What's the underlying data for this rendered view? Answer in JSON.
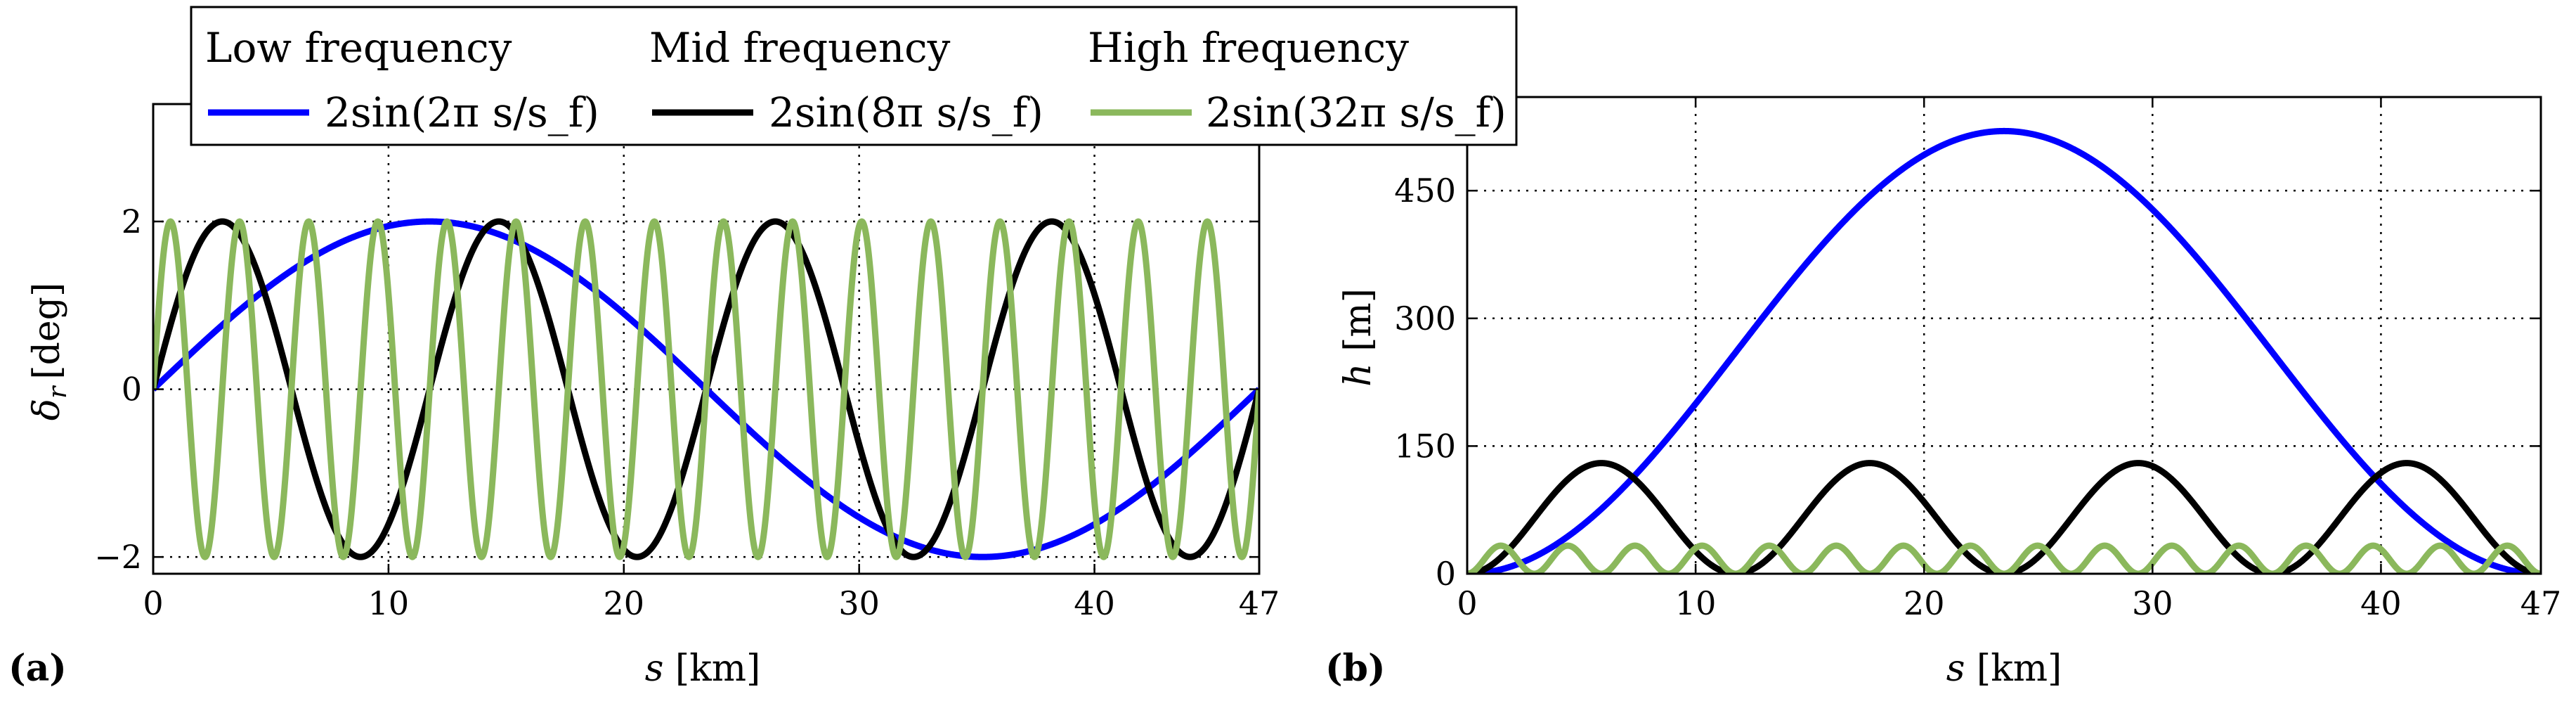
{
  "legend": {
    "entries": [
      {
        "name": "Low frequency",
        "formula": "2sin(2π s/s_f)",
        "color": "#0000ff"
      },
      {
        "name": "Mid frequency",
        "formula": "2sin(8π s/s_f)",
        "color": "#000000"
      },
      {
        "name": "High frequency",
        "formula": "2sin(32π s/s_f)",
        "color": "#8bb85c"
      }
    ]
  },
  "chart_data": [
    {
      "panel": "(a)",
      "type": "line",
      "xlabel_var": "s",
      "xlabel_unit": "[km]",
      "ylabel_var": "δ",
      "ylabel_sub": "r",
      "ylabel_unit": "[deg]",
      "xlim": [
        0,
        47
      ],
      "ylim": [
        -2.2,
        3.4
      ],
      "xticks": [
        0,
        10,
        20,
        30,
        40,
        47
      ],
      "xtick_labels": [
        "0",
        "10",
        "20",
        "30",
        "40",
        "47"
      ],
      "yticks": [
        -2,
        0,
        2
      ],
      "ytick_labels": [
        "−2",
        "0",
        "2"
      ],
      "grid": true,
      "s_f_km": 47,
      "amplitude_deg": 2,
      "series": [
        {
          "name": "Low frequency",
          "cycles": 1
        },
        {
          "name": "Mid frequency",
          "cycles": 4
        },
        {
          "name": "High frequency",
          "cycles": 16
        }
      ]
    },
    {
      "panel": "(b)",
      "type": "line",
      "xlabel_var": "s",
      "xlabel_unit": "[km]",
      "ylabel_var": "h",
      "ylabel_unit": "[m]",
      "xlim": [
        0,
        47
      ],
      "ylim": [
        0,
        560
      ],
      "xticks": [
        0,
        10,
        20,
        30,
        40,
        47
      ],
      "xtick_labels": [
        "0",
        "10",
        "20",
        "30",
        "40",
        "47"
      ],
      "yticks": [
        0,
        150,
        300,
        450
      ],
      "ytick_labels": [
        "0",
        "150",
        "300",
        "450"
      ],
      "grid": true,
      "series": [
        {
          "name": "Low frequency",
          "cycles": 1,
          "peak_m": 520
        },
        {
          "name": "Mid frequency",
          "cycles": 4,
          "peak_m": 130
        },
        {
          "name": "High frequency",
          "cycles": 16,
          "peak_m": 33
        }
      ]
    }
  ]
}
